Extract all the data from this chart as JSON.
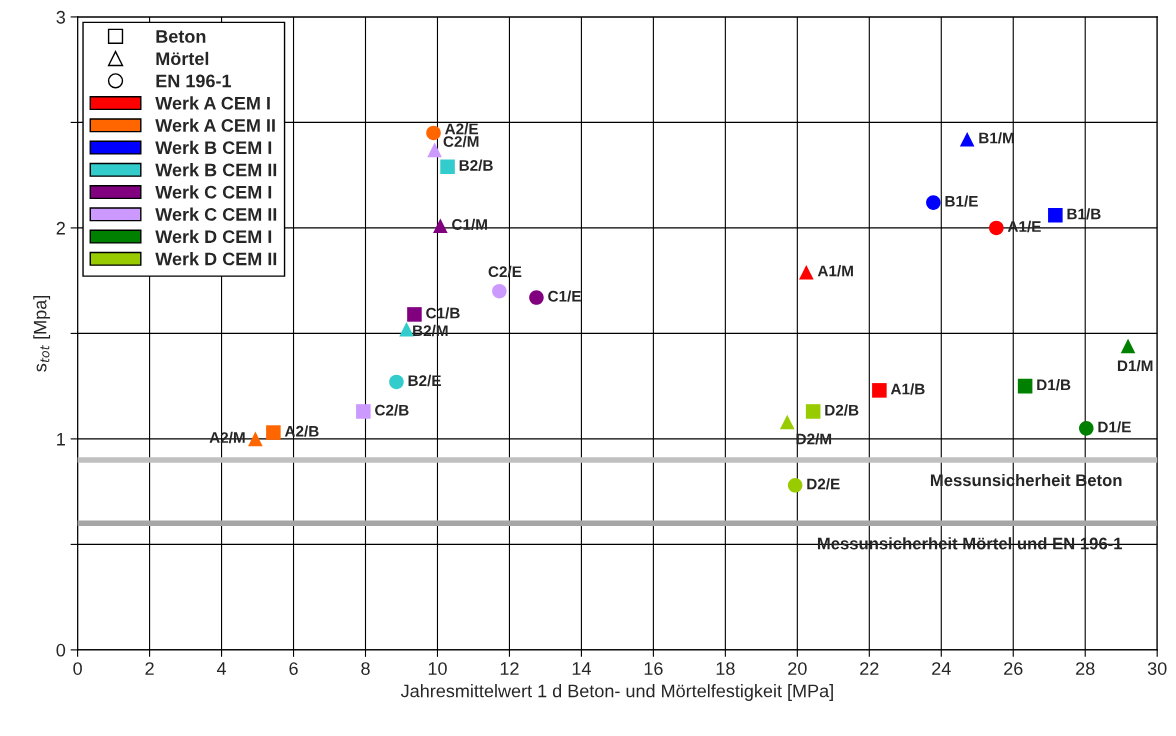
{
  "chart_data": {
    "type": "scatter",
    "xlabel": "Jahresmittelwert 1 d Beton- und Mörtelfestigkeit [MPa]",
    "ylabel": "s$_{tot}$ [Mpa]",
    "xlim": [
      0,
      30
    ],
    "xticks": [
      0,
      2,
      4,
      6,
      8,
      10,
      12,
      14,
      16,
      18,
      20,
      22,
      24,
      26,
      28,
      30
    ],
    "ylim": [
      0,
      3
    ],
    "yticks": [
      0,
      {
        "value": 0.5,
        "label": null
      },
      1,
      {
        "value": 1.5,
        "label": null
      },
      2,
      {
        "value": 2.5,
        "label": null
      },
      3
    ],
    "grid": true,
    "legend": "top left",
    "annotations": [
      "Beton",
      "Mörtel",
      "EN 196-1"
    ],
    "ref_lines": [
      {
        "axis": "y",
        "value": 0.9,
        "label": "Messunsicherheit Beton",
        "color": "#c0c0c0"
      },
      {
        "axis": "y",
        "value": 0.6,
        "label": "Messunsicherheit Mörtel und EN 196-1",
        "color": "#a6a6a6"
      }
    ],
    "series": [
      {
        "name": "Werk A CEM I",
        "color": "#ff0000",
        "marker": [
          "square",
          "triangle",
          "circle"
        ],
        "x": [
          22.28,
          20.25,
          25.53
        ],
        "values": [
          1.23,
          1.79,
          2.0
        ],
        "value_labels": [
          "A1/B",
          "A1/M",
          "A1/E"
        ]
      },
      {
        "name": "Werk A CEM II",
        "color": "#ff6600",
        "marker": [
          "square",
          "triangle",
          "circle"
        ],
        "x": [
          5.44,
          4.94,
          9.89
        ],
        "values": [
          1.03,
          1.0,
          2.45
        ],
        "value_labels": [
          "A2/B",
          "A2/M",
          "A2/E"
        ]
      },
      {
        "name": "Werk B CEM I",
        "color": "#0000ff",
        "marker": [
          "square",
          "triangle",
          "circle"
        ],
        "x": [
          27.17,
          24.72,
          23.78
        ],
        "values": [
          2.06,
          2.42,
          2.12
        ],
        "value_labels": [
          "B1/B",
          "B1/M",
          "B1/E"
        ]
      },
      {
        "name": "Werk B CEM II",
        "color": "#33cccc",
        "marker": [
          "square",
          "triangle",
          "circle"
        ],
        "x": [
          10.28,
          9.14,
          8.86
        ],
        "values": [
          2.29,
          1.52,
          1.27
        ],
        "value_labels": [
          "B2/B",
          "B2/M",
          "B2/E"
        ]
      },
      {
        "name": "Werk C CEM I",
        "color": "#800080",
        "marker": [
          "square",
          "triangle",
          "circle"
        ],
        "x": [
          9.36,
          10.08,
          12.75
        ],
        "values": [
          1.59,
          2.01,
          1.67
        ],
        "value_labels": [
          "C1/B",
          "C1/M",
          "C1/E"
        ]
      },
      {
        "name": "Werk C CEM II",
        "color": "#cc99ff",
        "marker": [
          "square",
          "triangle",
          "circle"
        ],
        "x": [
          7.94,
          9.92,
          11.72
        ],
        "values": [
          1.13,
          2.37,
          1.7
        ],
        "value_labels": [
          "C2/B",
          "C2/M",
          "C2/E"
        ]
      },
      {
        "name": "Werk D CEM I",
        "color": "#008000",
        "marker": [
          "square",
          "triangle",
          "circle"
        ],
        "x": [
          26.33,
          29.19,
          28.03
        ],
        "values": [
          1.25,
          1.44,
          1.05
        ],
        "value_labels": [
          "D1/B",
          "D1/M",
          "D1/E"
        ]
      },
      {
        "name": "Werk D CEM II",
        "color": "#99cc00",
        "marker": [
          "square",
          "triangle",
          "circle"
        ],
        "x": [
          20.44,
          19.72,
          19.94
        ],
        "values": [
          1.13,
          1.08,
          0.78
        ],
        "value_labels": [
          "D2/B",
          "D2/M",
          "D2/E"
        ]
      }
    ]
  }
}
